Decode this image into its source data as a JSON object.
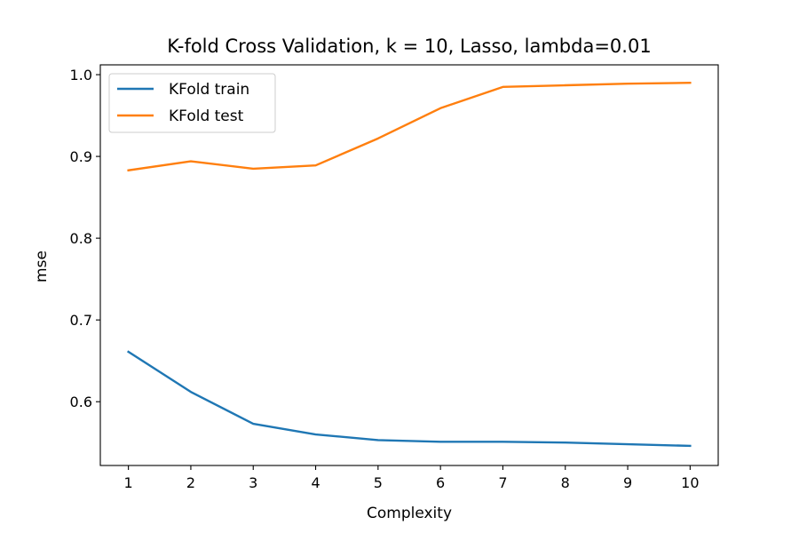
{
  "chart_data": {
    "type": "line",
    "title": "K-fold Cross Validation, k = 10, Lasso, lambda=0.01",
    "xlabel": "Complexity",
    "ylabel": "mse",
    "x": [
      1,
      2,
      3,
      4,
      5,
      6,
      7,
      8,
      9,
      10
    ],
    "xlim": [
      0.55,
      10.45
    ],
    "ylim": [
      0.522,
      1.012
    ],
    "xticks": [
      1,
      2,
      3,
      4,
      5,
      6,
      7,
      8,
      9,
      10
    ],
    "yticks": [
      0.6,
      0.7,
      0.8,
      0.9,
      1.0
    ],
    "ytick_labels": [
      "0.6",
      "0.7",
      "0.8",
      "0.9",
      "1.0"
    ],
    "grid": false,
    "legend_position": "top-left",
    "series": [
      {
        "name": "KFold train",
        "color": "#1f77b4",
        "values": [
          0.661,
          0.612,
          0.573,
          0.56,
          0.553,
          0.551,
          0.551,
          0.55,
          0.548,
          0.546
        ]
      },
      {
        "name": "KFold test",
        "color": "#ff7f0e",
        "values": [
          0.883,
          0.894,
          0.885,
          0.889,
          0.922,
          0.959,
          0.985,
          0.987,
          0.989,
          0.99
        ]
      }
    ]
  }
}
